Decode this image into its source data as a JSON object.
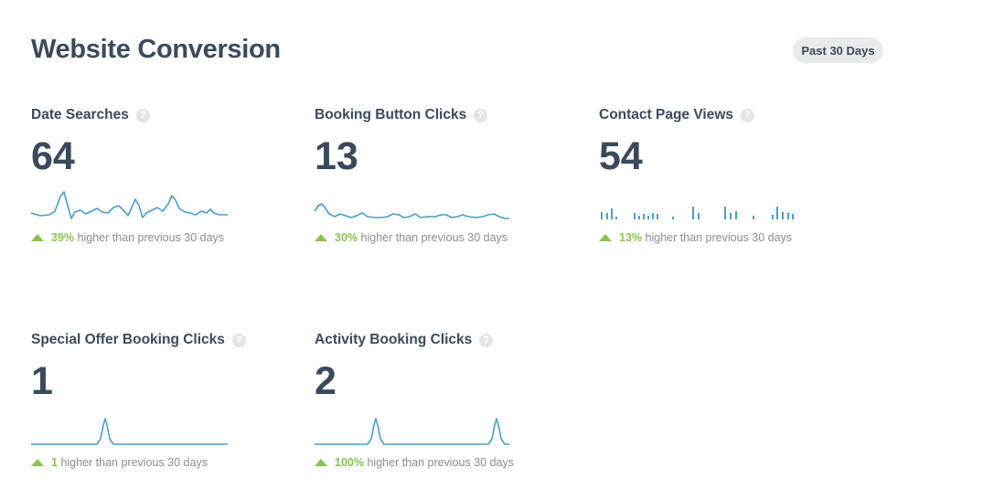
{
  "header": {
    "title": "Website Conversion",
    "range_label": "Past 30 Days"
  },
  "metrics": [
    {
      "label": "Date Searches",
      "value": "64",
      "change": "39%",
      "change_text": "higher than previous 30 days"
    },
    {
      "label": "Booking Button Clicks",
      "value": "13",
      "change": "30%",
      "change_text": "higher than previous 30 days"
    },
    {
      "label": "Contact Page Views",
      "value": "54",
      "change": "13%",
      "change_text": "higher than previous 30 days"
    },
    {
      "label": "Special Offer Booking Clicks",
      "value": "1",
      "change": "1",
      "change_text": "higher than previous 30 days"
    },
    {
      "label": "Activity Booking Clicks",
      "value": "2",
      "change": "100%",
      "change_text": "higher than previous 30 days"
    }
  ],
  "colors": {
    "sparkline": "#4a9fcb",
    "trend_up": "#8cc152",
    "text": "#3b4a5c"
  },
  "icons": {
    "help": "question-mark-circle",
    "trend": "triangle-up"
  }
}
